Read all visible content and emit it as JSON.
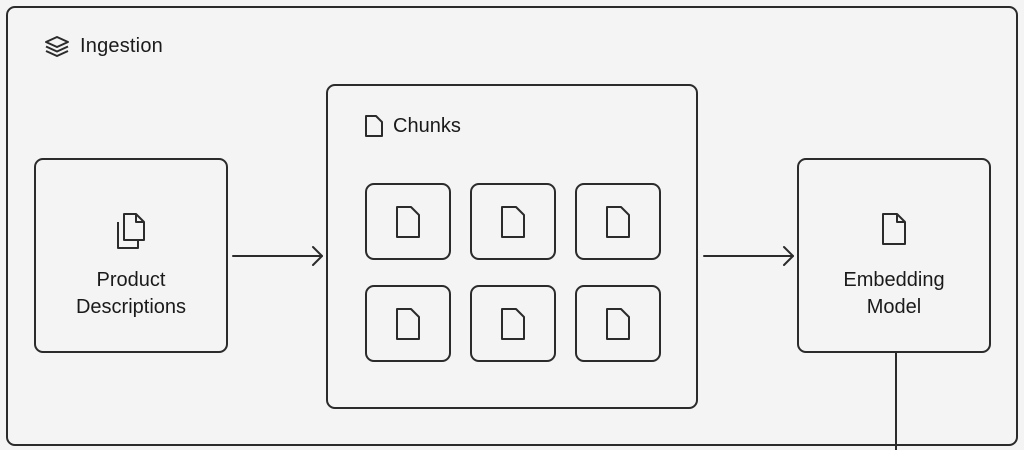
{
  "diagram": {
    "group_title": "Ingestion",
    "source": {
      "label_line1": "Product",
      "label_line2": "Descriptions"
    },
    "chunks": {
      "label": "Chunks",
      "count": 6
    },
    "model": {
      "label_line1": "Embedding",
      "label_line2": "Model"
    }
  },
  "colors": {
    "stroke": "#2b2b2b",
    "background": "#f4f4f4"
  },
  "icons": {
    "group": "layers-icon",
    "source": "copy-documents-icon",
    "chunks": "document-icon",
    "chunk": "document-icon",
    "model": "document-icon"
  }
}
